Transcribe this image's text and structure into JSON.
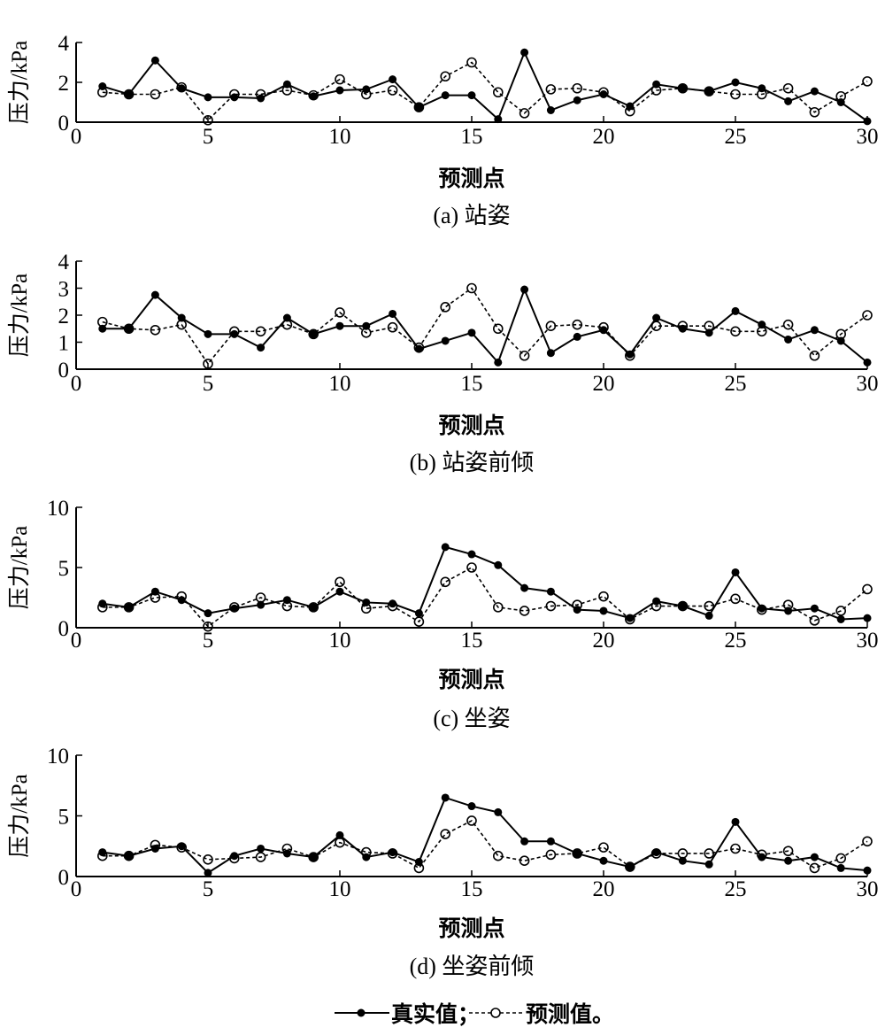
{
  "legend": {
    "real": "真实值；",
    "pred": "预测值。"
  },
  "chart_data": [
    {
      "type": "line",
      "caption": "(a) 站姿",
      "xlabel": "预测点",
      "ylabel": "压力/kPa",
      "xlim": [
        0,
        30
      ],
      "ylim": [
        0,
        4
      ],
      "xticks": [
        0,
        5,
        10,
        15,
        20,
        25,
        30
      ],
      "yticks": [
        0,
        2,
        4
      ],
      "x": [
        1,
        2,
        3,
        4,
        5,
        6,
        7,
        8,
        9,
        10,
        11,
        12,
        13,
        14,
        15,
        16,
        17,
        18,
        19,
        20,
        21,
        22,
        23,
        24,
        25,
        26,
        27,
        28,
        29,
        30
      ],
      "series": [
        {
          "name": "真实值",
          "values": [
            1.8,
            1.4,
            3.1,
            1.7,
            1.25,
            1.25,
            1.2,
            1.9,
            1.3,
            1.6,
            1.65,
            2.15,
            0.75,
            1.35,
            1.35,
            0.15,
            3.5,
            0.6,
            1.1,
            1.4,
            0.8,
            1.9,
            1.7,
            1.55,
            2.0,
            1.7,
            1.05,
            1.55,
            1.0,
            0.05
          ]
        },
        {
          "name": "预测值",
          "values": [
            1.5,
            1.4,
            1.4,
            1.75,
            0.1,
            1.4,
            1.4,
            1.6,
            1.35,
            2.15,
            1.4,
            1.6,
            0.75,
            2.3,
            3.0,
            1.5,
            0.45,
            1.65,
            1.7,
            1.5,
            0.55,
            1.6,
            1.7,
            1.55,
            1.4,
            1.4,
            1.7,
            0.5,
            1.3,
            2.05
          ]
        }
      ]
    },
    {
      "type": "line",
      "caption": "(b) 站姿前倾",
      "xlabel": "预测点",
      "ylabel": "压力/kPa",
      "xlim": [
        0,
        30
      ],
      "ylim": [
        0,
        4
      ],
      "xticks": [
        0,
        5,
        10,
        15,
        20,
        25,
        30
      ],
      "yticks": [
        0,
        1,
        2,
        3,
        4
      ],
      "x": [
        1,
        2,
        3,
        4,
        5,
        6,
        7,
        8,
        9,
        10,
        11,
        12,
        13,
        14,
        15,
        16,
        17,
        18,
        19,
        20,
        21,
        22,
        23,
        24,
        25,
        26,
        27,
        28,
        29,
        30
      ],
      "series": [
        {
          "name": "真实值",
          "values": [
            1.5,
            1.5,
            2.75,
            1.9,
            1.3,
            1.3,
            0.8,
            1.9,
            1.3,
            1.6,
            1.6,
            2.05,
            0.75,
            1.05,
            1.35,
            0.25,
            2.95,
            0.6,
            1.2,
            1.45,
            0.55,
            1.9,
            1.5,
            1.35,
            2.15,
            1.65,
            1.1,
            1.45,
            1.05,
            0.25
          ]
        },
        {
          "name": "预测值",
          "values": [
            1.75,
            1.5,
            1.45,
            1.65,
            0.2,
            1.4,
            1.4,
            1.65,
            1.3,
            2.1,
            1.35,
            1.55,
            0.8,
            2.3,
            3.0,
            1.5,
            0.5,
            1.6,
            1.65,
            1.55,
            0.5,
            1.6,
            1.6,
            1.6,
            1.4,
            1.4,
            1.65,
            0.5,
            1.3,
            2.0
          ]
        }
      ]
    },
    {
      "type": "line",
      "caption": "(c) 坐姿",
      "xlabel": "预测点",
      "ylabel": "压力/kPa",
      "xlim": [
        0,
        30
      ],
      "ylim": [
        0,
        10
      ],
      "xticks": [
        0,
        5,
        10,
        15,
        20,
        25,
        30
      ],
      "yticks": [
        0,
        5,
        10
      ],
      "x": [
        1,
        2,
        3,
        4,
        5,
        6,
        7,
        8,
        9,
        10,
        11,
        12,
        13,
        14,
        15,
        16,
        17,
        18,
        19,
        20,
        21,
        22,
        23,
        24,
        25,
        26,
        27,
        28,
        29,
        30
      ],
      "series": [
        {
          "name": "真实值",
          "values": [
            2.0,
            1.7,
            3.0,
            2.3,
            1.2,
            1.6,
            1.9,
            2.3,
            1.7,
            3.0,
            2.1,
            2.0,
            1.2,
            6.7,
            6.1,
            5.2,
            3.3,
            3.0,
            1.5,
            1.4,
            0.8,
            2.2,
            1.8,
            1.0,
            4.6,
            1.6,
            1.4,
            1.6,
            0.7,
            0.8
          ]
        },
        {
          "name": "预测值",
          "values": [
            1.7,
            1.7,
            2.5,
            2.6,
            0.1,
            1.7,
            2.5,
            1.8,
            1.7,
            3.8,
            1.6,
            1.8,
            0.5,
            3.8,
            5.0,
            1.7,
            1.4,
            1.8,
            1.9,
            2.6,
            0.7,
            1.8,
            1.8,
            1.8,
            2.4,
            1.5,
            1.9,
            0.6,
            1.4,
            3.2
          ]
        }
      ]
    },
    {
      "type": "line",
      "caption": "(d) 坐姿前倾",
      "xlabel": "预测点",
      "ylabel": "压力/kPa",
      "xlim": [
        0,
        30
      ],
      "ylim": [
        0,
        10
      ],
      "xticks": [
        0,
        5,
        10,
        15,
        20,
        25,
        30
      ],
      "yticks": [
        0,
        5,
        10
      ],
      "x": [
        1,
        2,
        3,
        4,
        5,
        6,
        7,
        8,
        9,
        10,
        11,
        12,
        13,
        14,
        15,
        16,
        17,
        18,
        19,
        20,
        21,
        22,
        23,
        24,
        25,
        26,
        27,
        28,
        29,
        30
      ],
      "series": [
        {
          "name": "真实值",
          "values": [
            2.0,
            1.7,
            2.3,
            2.5,
            0.3,
            1.7,
            2.3,
            1.9,
            1.6,
            3.4,
            1.6,
            2.0,
            1.2,
            6.5,
            5.8,
            5.3,
            2.9,
            2.9,
            1.9,
            1.3,
            0.8,
            2.0,
            1.3,
            1.0,
            4.5,
            1.6,
            1.3,
            1.6,
            0.7,
            0.5
          ]
        },
        {
          "name": "预测值",
          "values": [
            1.7,
            1.7,
            2.6,
            2.4,
            1.4,
            1.5,
            1.6,
            2.3,
            1.6,
            2.8,
            2.0,
            1.9,
            0.7,
            3.5,
            4.6,
            1.7,
            1.3,
            1.8,
            1.9,
            2.4,
            0.8,
            1.9,
            1.9,
            1.9,
            2.3,
            1.8,
            2.1,
            0.7,
            1.5,
            2.9
          ]
        }
      ]
    }
  ]
}
